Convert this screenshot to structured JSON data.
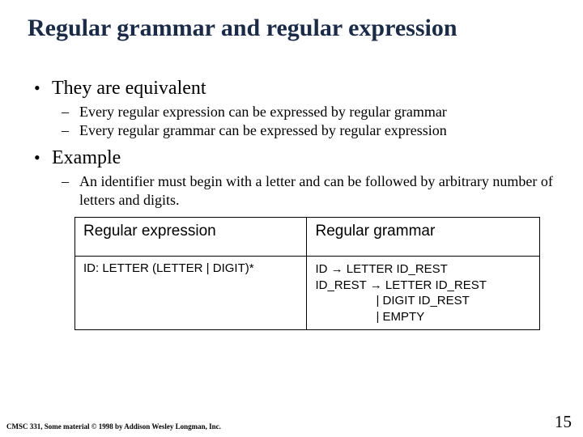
{
  "title": "Regular grammar and regular expression",
  "bullets": [
    {
      "text": "They are equivalent",
      "subs": [
        "Every regular expression can be expressed by regular grammar",
        "Every regular grammar can be expressed by regular expression"
      ]
    },
    {
      "text": "Example",
      "subs": [
        "An identifier must begin with a letter and can be followed by arbitrary number of letters and digits."
      ]
    }
  ],
  "table": {
    "headers": [
      "Regular expression",
      "Regular grammar"
    ],
    "row": {
      "left": "ID: LETTER (LETTER | DIGIT)*",
      "right": [
        "ID → LETTER ID_REST",
        "ID_REST → LETTER ID_REST",
        "                  | DIGIT ID_REST",
        "                  | EMPTY"
      ]
    }
  },
  "footer": "CMSC 331, Some material © 1998 by Addison Wesley Longman, Inc.",
  "page_number": "15",
  "colors": {
    "title": "#1a2b4a",
    "body": "#000000",
    "background": "#ffffff",
    "border": "#000000"
  },
  "fonts": {
    "title_size": 30,
    "bullet_size": 24,
    "sub_size": 18,
    "th_size": 19,
    "td_size": 15,
    "footer_size": 9,
    "pagenum_size": 21
  }
}
